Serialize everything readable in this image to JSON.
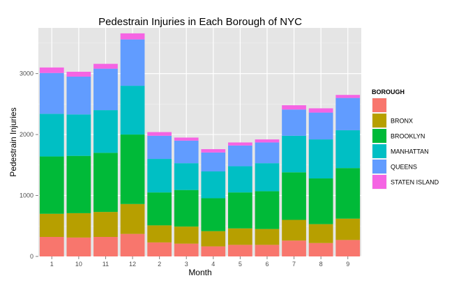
{
  "chart_data": {
    "type": "bar",
    "stacked": true,
    "title": "Pedestrain Injuries in Each Borough of NYC",
    "xlabel": "Month",
    "ylabel": "Pedestrain Injuries",
    "categories": [
      "1",
      "10",
      "11",
      "12",
      "2",
      "3",
      "4",
      "5",
      "6",
      "7",
      "8",
      "9"
    ],
    "ylim": [
      0,
      3750
    ],
    "yticks": [
      0,
      1000,
      2000,
      3000
    ],
    "ytick_labels": [
      "0",
      "1000",
      "2000",
      "3000"
    ],
    "grid": true,
    "legend": {
      "title": "BOROUGH",
      "position": "right"
    },
    "series": [
      {
        "name": "",
        "color": "#F8766D",
        "values": [
          320,
          310,
          320,
          370,
          230,
          210,
          165,
          190,
          190,
          260,
          220,
          270
        ]
      },
      {
        "name": "BRONX",
        "color": "#B79F00",
        "values": [
          380,
          400,
          410,
          490,
          280,
          280,
          250,
          270,
          260,
          340,
          310,
          350
        ]
      },
      {
        "name": "BROOKLYN",
        "color": "#00BA38",
        "values": [
          940,
          940,
          970,
          1140,
          540,
          600,
          540,
          590,
          620,
          780,
          750,
          830
        ]
      },
      {
        "name": "MANHATTAN",
        "color": "#00BFC4",
        "values": [
          700,
          680,
          700,
          800,
          550,
          440,
          440,
          430,
          460,
          600,
          640,
          620
        ]
      },
      {
        "name": "QUEENS",
        "color": "#619CFF",
        "values": [
          670,
          620,
          680,
          760,
          380,
          370,
          310,
          340,
          340,
          430,
          440,
          530
        ]
      },
      {
        "name": "STATEN ISLAND",
        "color": "#F564E3",
        "values": [
          90,
          80,
          80,
          100,
          60,
          50,
          55,
          50,
          50,
          70,
          70,
          50
        ]
      }
    ]
  }
}
